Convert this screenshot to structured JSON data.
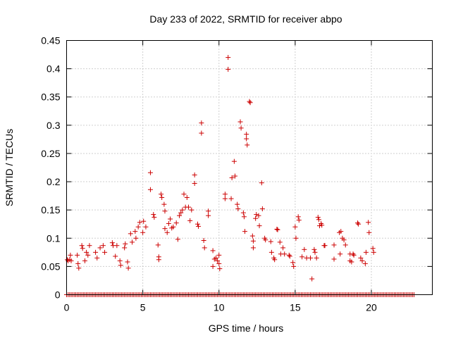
{
  "chart_data": {
    "type": "scatter",
    "title": "Day 233 of 2022, SRMTID for receiver abpo",
    "xlabel": "GPS time / hours",
    "ylabel": "SRMTID / TECUs",
    "xlim": [
      0,
      24
    ],
    "ylim": [
      0,
      0.45
    ],
    "grid": true,
    "marker": "+",
    "color": "#cc0000",
    "x_ticks": [
      {
        "value": 0,
        "label": "0"
      },
      {
        "value": 5,
        "label": "5"
      },
      {
        "value": 10,
        "label": "10"
      },
      {
        "value": 15,
        "label": "15"
      },
      {
        "value": 20,
        "label": "20"
      }
    ],
    "y_ticks": [
      {
        "value": 0,
        "label": "0"
      },
      {
        "value": 0.05,
        "label": "0.05"
      },
      {
        "value": 0.1,
        "label": "0.1"
      },
      {
        "value": 0.15,
        "label": "0.15"
      },
      {
        "value": 0.2,
        "label": "0.2"
      },
      {
        "value": 0.25,
        "label": "0.25"
      },
      {
        "value": 0.3,
        "label": "0.3"
      },
      {
        "value": 0.35,
        "label": "0.35"
      },
      {
        "value": 0.4,
        "label": "0.4"
      },
      {
        "value": 0.45,
        "label": "0.45"
      }
    ],
    "zero_series": {
      "x_start": 0,
      "x_end": 22.75,
      "step": 0.1,
      "y": 0
    },
    "points": [
      [
        0.05,
        0.062
      ],
      [
        0.1,
        0.06
      ],
      [
        0.2,
        0.062
      ],
      [
        0.25,
        0.07
      ],
      [
        0.3,
        0.06
      ],
      [
        0.7,
        0.07
      ],
      [
        0.75,
        0.055
      ],
      [
        0.8,
        0.047
      ],
      [
        1.0,
        0.087
      ],
      [
        1.05,
        0.082
      ],
      [
        1.2,
        0.06
      ],
      [
        1.3,
        0.075
      ],
      [
        1.4,
        0.07
      ],
      [
        1.5,
        0.087
      ],
      [
        1.9,
        0.075
      ],
      [
        2.0,
        0.065
      ],
      [
        2.2,
        0.083
      ],
      [
        2.4,
        0.087
      ],
      [
        2.5,
        0.075
      ],
      [
        3.0,
        0.092
      ],
      [
        3.05,
        0.087
      ],
      [
        3.2,
        0.068
      ],
      [
        3.3,
        0.087
      ],
      [
        3.5,
        0.06
      ],
      [
        3.55,
        0.052
      ],
      [
        3.8,
        0.083
      ],
      [
        3.85,
        0.09
      ],
      [
        4.0,
        0.058
      ],
      [
        4.05,
        0.047
      ],
      [
        4.2,
        0.108
      ],
      [
        4.3,
        0.093
      ],
      [
        4.5,
        0.112
      ],
      [
        4.55,
        0.1
      ],
      [
        4.7,
        0.12
      ],
      [
        4.8,
        0.128
      ],
      [
        5.0,
        0.11
      ],
      [
        5.05,
        0.13
      ],
      [
        5.2,
        0.12
      ],
      [
        5.5,
        0.216
      ],
      [
        5.5,
        0.186
      ],
      [
        5.7,
        0.142
      ],
      [
        5.75,
        0.137
      ],
      [
        6.0,
        0.088
      ],
      [
        6.05,
        0.067
      ],
      [
        6.05,
        0.062
      ],
      [
        6.2,
        0.178
      ],
      [
        6.25,
        0.172
      ],
      [
        6.4,
        0.16
      ],
      [
        6.45,
        0.148
      ],
      [
        6.45,
        0.117
      ],
      [
        6.6,
        0.11
      ],
      [
        6.7,
        0.126
      ],
      [
        6.8,
        0.134
      ],
      [
        6.9,
        0.118
      ],
      [
        7.0,
        0.12
      ],
      [
        7.2,
        0.127
      ],
      [
        7.3,
        0.098
      ],
      [
        7.4,
        0.14
      ],
      [
        7.5,
        0.145
      ],
      [
        7.6,
        0.15
      ],
      [
        7.7,
        0.178
      ],
      [
        7.8,
        0.155
      ],
      [
        7.9,
        0.172
      ],
      [
        8.0,
        0.155
      ],
      [
        8.1,
        0.131
      ],
      [
        8.2,
        0.15
      ],
      [
        8.4,
        0.212
      ],
      [
        8.4,
        0.197
      ],
      [
        8.6,
        0.125
      ],
      [
        8.65,
        0.121
      ],
      [
        8.85,
        0.304
      ],
      [
        8.85,
        0.286
      ],
      [
        9.0,
        0.096
      ],
      [
        9.05,
        0.083
      ],
      [
        9.3,
        0.148
      ],
      [
        9.3,
        0.14
      ],
      [
        9.6,
        0.078
      ],
      [
        9.6,
        0.05
      ],
      [
        9.7,
        0.063
      ],
      [
        9.8,
        0.065
      ],
      [
        9.9,
        0.06
      ],
      [
        10.0,
        0.07
      ],
      [
        10.0,
        0.055
      ],
      [
        10.05,
        0.046
      ],
      [
        10.4,
        0.178
      ],
      [
        10.4,
        0.17
      ],
      [
        10.6,
        0.42
      ],
      [
        10.6,
        0.399
      ],
      [
        10.8,
        0.17
      ],
      [
        10.85,
        0.207
      ],
      [
        11.0,
        0.236
      ],
      [
        11.05,
        0.21
      ],
      [
        11.2,
        0.16
      ],
      [
        11.25,
        0.152
      ],
      [
        11.4,
        0.306
      ],
      [
        11.45,
        0.295
      ],
      [
        11.6,
        0.145
      ],
      [
        11.65,
        0.138
      ],
      [
        11.7,
        0.112
      ],
      [
        11.8,
        0.284
      ],
      [
        11.8,
        0.276
      ],
      [
        11.85,
        0.265
      ],
      [
        12.0,
        0.342
      ],
      [
        12.05,
        0.34
      ],
      [
        12.2,
        0.104
      ],
      [
        12.25,
        0.095
      ],
      [
        12.25,
        0.083
      ],
      [
        12.4,
        0.135
      ],
      [
        12.45,
        0.142
      ],
      [
        12.6,
        0.14
      ],
      [
        12.65,
        0.122
      ],
      [
        12.8,
        0.198
      ],
      [
        12.85,
        0.152
      ],
      [
        13.0,
        0.1
      ],
      [
        13.05,
        0.097
      ],
      [
        13.4,
        0.094
      ],
      [
        13.45,
        0.075
      ],
      [
        13.6,
        0.065
      ],
      [
        13.65,
        0.062
      ],
      [
        13.8,
        0.116
      ],
      [
        13.85,
        0.115
      ],
      [
        14.0,
        0.093
      ],
      [
        14.05,
        0.072
      ],
      [
        14.2,
        0.083
      ],
      [
        14.3,
        0.072
      ],
      [
        14.6,
        0.07
      ],
      [
        14.65,
        0.068
      ],
      [
        14.85,
        0.057
      ],
      [
        14.9,
        0.05
      ],
      [
        15.0,
        0.12
      ],
      [
        15.05,
        0.1
      ],
      [
        15.2,
        0.138
      ],
      [
        15.25,
        0.132
      ],
      [
        15.45,
        0.067
      ],
      [
        15.6,
        0.08
      ],
      [
        15.75,
        0.065
      ],
      [
        16.0,
        0.065
      ],
      [
        16.1,
        0.028
      ],
      [
        16.25,
        0.08
      ],
      [
        16.3,
        0.075
      ],
      [
        16.4,
        0.065
      ],
      [
        16.5,
        0.137
      ],
      [
        16.55,
        0.133
      ],
      [
        16.6,
        0.122
      ],
      [
        16.7,
        0.126
      ],
      [
        16.75,
        0.123
      ],
      [
        16.9,
        0.087
      ],
      [
        16.95,
        0.087
      ],
      [
        17.55,
        0.088
      ],
      [
        17.55,
        0.063
      ],
      [
        17.9,
        0.11
      ],
      [
        17.95,
        0.072
      ],
      [
        18.0,
        0.112
      ],
      [
        18.1,
        0.1
      ],
      [
        18.2,
        0.097
      ],
      [
        18.3,
        0.088
      ],
      [
        18.6,
        0.072
      ],
      [
        18.6,
        0.06
      ],
      [
        18.7,
        0.058
      ],
      [
        18.8,
        0.072
      ],
      [
        18.85,
        0.07
      ],
      [
        19.1,
        0.127
      ],
      [
        19.15,
        0.125
      ],
      [
        19.3,
        0.065
      ],
      [
        19.4,
        0.06
      ],
      [
        19.6,
        0.055
      ],
      [
        19.65,
        0.075
      ],
      [
        19.8,
        0.128
      ],
      [
        19.85,
        0.11
      ],
      [
        20.1,
        0.082
      ],
      [
        20.15,
        0.075
      ]
    ]
  }
}
